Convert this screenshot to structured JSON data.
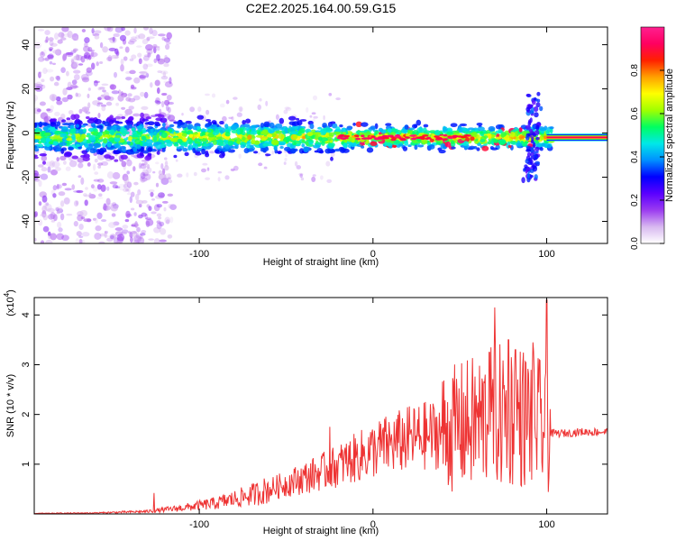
{
  "figure": {
    "title": "C2E2.2025.164.00.59.G15"
  },
  "chart_data": [
    {
      "type": "heatmap",
      "xlabel": "Height of straight line (km)",
      "ylabel": "Frequency (Hz)",
      "xlim": [
        -195,
        135
      ],
      "ylim": [
        -50,
        48
      ],
      "xticks": [
        -100,
        0,
        100
      ],
      "yticks": [
        -40,
        -20,
        0,
        20,
        40
      ],
      "colorbar": {
        "label": "Normalized spectral amplitude",
        "range": [
          0.0,
          1.0
        ],
        "ticks": [
          0.0,
          0.2,
          0.4,
          0.6,
          0.8
        ],
        "tick_labels": [
          "0.0",
          "0.2",
          "0.4",
          "0.6",
          "0.8"
        ],
        "colormap": [
          "#ffffff",
          "#d8b8f0",
          "#9b3cf0",
          "#5a00ff",
          "#0000ff",
          "#0090ff",
          "#00e8e8",
          "#00ff60",
          "#a0ff00",
          "#ffff00",
          "#ffa000",
          "#ff2000",
          "#ff0060",
          "#ff2090"
        ]
      },
      "trace": {
        "description": "narrow band centered near 0 Hz, noisy scatter at heights below -120 km, spike near 95 km, saturated strong signal above 100 km",
        "center_hz": -2,
        "spike_x_km": 95,
        "spike_range_hz": [
          -22,
          18
        ]
      }
    },
    {
      "type": "line",
      "xlabel": "Height of straight line (km)",
      "ylabel": "SNR (10 * v/v)",
      "y_multiplier": "(x10^4)",
      "y_multiplier_base": "(x10",
      "y_multiplier_exp": "4",
      "y_multiplier_close": ")",
      "xlim": [
        -195,
        135
      ],
      "ylim": [
        0,
        4.35
      ],
      "xticks": [
        -100,
        0,
        100
      ],
      "yticks": [
        1,
        2,
        3,
        4
      ],
      "color": "#ee3333",
      "grid": false,
      "envelope": {
        "x": [
          -195,
          -160,
          -130,
          -110,
          -90,
          -70,
          -55,
          -40,
          -25,
          -15,
          -5,
          5,
          20,
          35,
          50,
          60,
          70,
          80,
          88,
          95,
          100,
          103,
          110,
          120,
          135
        ],
        "y": [
          0.01,
          0.02,
          0.05,
          0.12,
          0.22,
          0.38,
          0.55,
          0.72,
          0.9,
          1.05,
          1.2,
          1.35,
          1.5,
          1.6,
          1.75,
          1.85,
          1.95,
          2.0,
          1.95,
          1.85,
          1.6,
          1.62,
          1.62,
          1.65,
          1.65
        ]
      },
      "peaks": [
        {
          "x": 70,
          "y": 4.15
        },
        {
          "x": 100,
          "y": 4.3
        },
        {
          "x": 78,
          "y": 3.5
        },
        {
          "x": 92,
          "y": 3.45
        },
        {
          "x": 67,
          "y": 3.25
        },
        {
          "x": 82,
          "y": 3.3
        },
        {
          "x": -25,
          "y": 1.75
        },
        {
          "x": -126,
          "y": 0.42
        }
      ]
    }
  ]
}
